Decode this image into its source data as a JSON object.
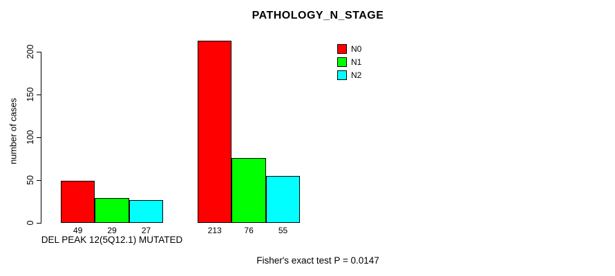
{
  "title": "PATHOLOGY_N_STAGE",
  "footer": "Fisher's exact test P = 0.0147",
  "chart_data": {
    "type": "bar",
    "title": "PATHOLOGY_N_STAGE",
    "xlabel": "",
    "ylabel": "number of cases",
    "categories": [
      "DEL PEAK 12(5Q12.1) MUTATED",
      ""
    ],
    "series": [
      {
        "name": "N0",
        "color": "#FF0000",
        "values": [
          49,
          213
        ]
      },
      {
        "name": "N1",
        "color": "#00FF00",
        "values": [
          29,
          76
        ]
      },
      {
        "name": "N2",
        "color": "#00FFFF",
        "values": [
          27,
          55
        ]
      }
    ],
    "yticks": [
      0,
      50,
      100,
      150,
      200
    ],
    "ylim": [
      0,
      200
    ],
    "bar_value_labels": [
      [
        49,
        29,
        27
      ],
      [
        213,
        76,
        55
      ]
    ],
    "legend": [
      {
        "label": "N0",
        "color": "#FF0000"
      },
      {
        "label": "N1",
        "color": "#00FF00"
      },
      {
        "label": "N2",
        "color": "#00FFFF"
      }
    ],
    "legend_position": "top-right",
    "grid": false,
    "annotation": "Fisher's exact test P = 0.0147"
  }
}
